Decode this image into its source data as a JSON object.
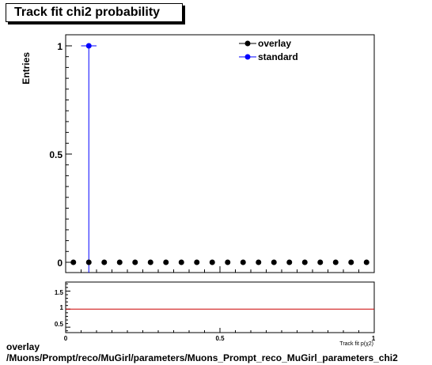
{
  "chart_data": [
    {
      "type": "scatter",
      "title": "Track fit chi2 probability",
      "ylabel": "Entries",
      "xlim": [
        0,
        1
      ],
      "ylim": [
        0,
        1
      ],
      "y_ticks": [
        "0",
        "0.5",
        "1"
      ],
      "legend": {
        "placement": "top-right"
      },
      "series": [
        {
          "name": "overlay",
          "color": "#000000",
          "x": [
            0.025,
            0.075,
            0.125,
            0.175,
            0.225,
            0.275,
            0.325,
            0.375,
            0.425,
            0.475,
            0.525,
            0.575,
            0.625,
            0.675,
            0.725,
            0.775,
            0.825,
            0.875,
            0.925,
            0.975
          ],
          "y": [
            0,
            0,
            0,
            0,
            0,
            0,
            0,
            0,
            0,
            0,
            0,
            0,
            0,
            0,
            0,
            0,
            0,
            0,
            0,
            0
          ]
        },
        {
          "name": "standard",
          "color": "#0000ff",
          "x": [
            0.075
          ],
          "y": [
            1
          ]
        }
      ]
    },
    {
      "type": "line",
      "xlim": [
        0,
        1
      ],
      "ylim": [
        0.35,
        1.75
      ],
      "y_ticks": [
        "0.5",
        "1",
        "1.5"
      ],
      "x_ticks": [
        "0",
        "0.5",
        "1"
      ],
      "xlabel": "Track fit p(χ2)",
      "reference_line": {
        "y": 1,
        "color": "#cc0000"
      }
    }
  ],
  "caption": {
    "line1": "overlay",
    "line2": "/Muons/Prompt/reco/MuGirl/parameters/Muons_Prompt_reco_MuGirl_parameters_chi2"
  }
}
